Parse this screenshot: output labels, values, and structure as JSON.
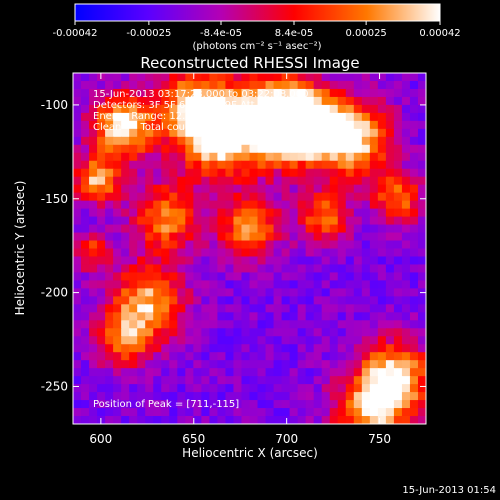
{
  "chart_data": {
    "type": "heatmap",
    "title": "Reconstructed RHESSI Image",
    "xlabel": "Heliocentric X (arcsec)",
    "ylabel": "Heliocentric Y (arcsec)",
    "xlim": [
      585,
      775
    ],
    "ylim": [
      -270,
      -83
    ],
    "xticks": [
      600,
      650,
      700,
      750
    ],
    "yticks": [
      -100,
      -150,
      -200,
      -250
    ],
    "colorbar": {
      "min": -0.00042,
      "max": 0.00042,
      "ticks": [
        "-0.00042",
        "-0.00025",
        "-8.4e-05",
        "8.4e-05",
        "0.00025",
        "0.00042"
      ],
      "unit_label": "(photons cm⁻² s⁻¹ asec⁻²)",
      "colors": [
        "#0000ff",
        "#5a00ff",
        "#b400b4",
        "#ff0000",
        "#ff7800",
        "#ffffff"
      ]
    },
    "annotations": {
      "time_range": "15-Jun-2013 03:17:28.000 to 03:22:08.000",
      "detectors": "Detectors: 3F 5F 6F 7F 8F 9F Att 0",
      "energy": "Energy Range: 12.0 - 25.0 keV",
      "clean": "Clean      Total counts: 9.91E+03",
      "peak": "Position of Peak = [711,-115]"
    },
    "peak": {
      "x": 711,
      "y": -115
    },
    "bright_regions": [
      {
        "x": 708,
        "y": -110,
        "w": 24,
        "level": 1.0
      },
      {
        "x": 690,
        "y": -108,
        "w": 35,
        "level": 0.8
      },
      {
        "x": 735,
        "y": -118,
        "w": 30,
        "level": 0.75
      },
      {
        "x": 660,
        "y": -118,
        "w": 30,
        "level": 0.65
      },
      {
        "x": 612,
        "y": -112,
        "w": 25,
        "level": 0.75
      },
      {
        "x": 598,
        "y": -140,
        "w": 18,
        "level": 0.6
      },
      {
        "x": 635,
        "y": -160,
        "w": 26,
        "level": 0.55
      },
      {
        "x": 680,
        "y": -165,
        "w": 24,
        "level": 0.55
      },
      {
        "x": 720,
        "y": -160,
        "w": 20,
        "level": 0.5
      },
      {
        "x": 760,
        "y": -150,
        "w": 20,
        "level": 0.5
      },
      {
        "x": 625,
        "y": -205,
        "w": 30,
        "level": 0.6
      },
      {
        "x": 612,
        "y": -225,
        "w": 22,
        "level": 0.45
      },
      {
        "x": 758,
        "y": -245,
        "w": 28,
        "level": 0.7
      },
      {
        "x": 745,
        "y": -265,
        "w": 30,
        "level": 0.55
      },
      {
        "x": 650,
        "y": -98,
        "w": 28,
        "level": 0.55
      },
      {
        "x": 595,
        "y": -178,
        "w": 14,
        "level": 0.4
      }
    ]
  },
  "footer": {
    "timestamp": "15-Jun-2013 01:54"
  }
}
